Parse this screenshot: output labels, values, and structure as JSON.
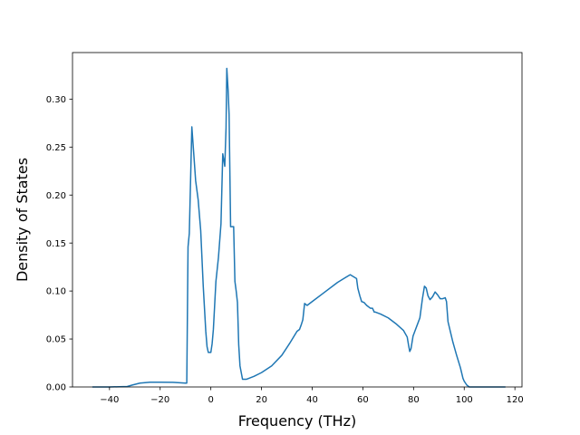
{
  "chart_data": {
    "type": "line",
    "title": "",
    "xlabel": "Frequency (THz)",
    "ylabel": "Density of States",
    "xlim": [
      -54.6,
      122.8
    ],
    "ylim": [
      0.0,
      0.3485
    ],
    "xticks": [
      -40,
      -20,
      0,
      20,
      40,
      60,
      80,
      100,
      120
    ],
    "xtick_labels": [
      "−40",
      "−20",
      "0",
      "20",
      "40",
      "60",
      "80",
      "100",
      "120"
    ],
    "yticks": [
      0.0,
      0.05,
      0.1,
      0.15,
      0.2,
      0.25,
      0.3
    ],
    "ytick_labels": [
      "0.00",
      "0.05",
      "0.10",
      "0.15",
      "0.20",
      "0.25",
      "0.30"
    ],
    "grid": false,
    "color": "#1f77b4",
    "series": [
      {
        "x": [
          -46.5,
          -40,
          -33,
          -31,
          -28,
          -24,
          -20,
          -15,
          -10,
          -9.5,
          -9.0,
          -8.5,
          -7.5,
          -6.8,
          -6.0,
          -5.0,
          -4.0,
          -3.0,
          -2.0,
          -1.5,
          -1.0,
          -0.5,
          0.0,
          0.5,
          1.0,
          1.5,
          2.0,
          3.0,
          4.0,
          4.7,
          5.2,
          5.5,
          6.0,
          6.3,
          6.8,
          7.2,
          7.8,
          8.3,
          9.0,
          9.5,
          10.0,
          10.5,
          11.0,
          11.5,
          12.5,
          14,
          17,
          20,
          24,
          28,
          31,
          34,
          35,
          35.7,
          36.3,
          37.0,
          38.0,
          40,
          44,
          50,
          55,
          57.5,
          58.0,
          58.8,
          59.5,
          60.5,
          61.5,
          63.0,
          63.8,
          64.5,
          65.0,
          67,
          70,
          73,
          76,
          77.5,
          78.0,
          78.5,
          79.0,
          79.8,
          80.5,
          81.5,
          82.5,
          83.5,
          84.3,
          85.0,
          85.7,
          86.5,
          87.5,
          88.5,
          89.5,
          90.5,
          91.5,
          92.5,
          93.0,
          93.6,
          94.5,
          95.5,
          97.0,
          98.5,
          99.5,
          100.0,
          100.5,
          101.0,
          102.0,
          103.0,
          105,
          110,
          116
        ],
        "y": [
          0.0,
          0.0,
          0.0005,
          0.002,
          0.004,
          0.005,
          0.005,
          0.0048,
          0.004,
          0.004,
          0.146,
          0.16,
          0.271,
          0.245,
          0.215,
          0.195,
          0.163,
          0.105,
          0.058,
          0.042,
          0.036,
          0.036,
          0.036,
          0.045,
          0.06,
          0.085,
          0.11,
          0.135,
          0.17,
          0.243,
          0.235,
          0.23,
          0.27,
          0.332,
          0.31,
          0.284,
          0.167,
          0.167,
          0.167,
          0.11,
          0.1,
          0.088,
          0.044,
          0.022,
          0.008,
          0.008,
          0.011,
          0.015,
          0.022,
          0.033,
          0.045,
          0.058,
          0.06,
          0.065,
          0.07,
          0.087,
          0.085,
          0.089,
          0.097,
          0.109,
          0.117,
          0.113,
          0.103,
          0.095,
          0.089,
          0.088,
          0.085,
          0.082,
          0.082,
          0.078,
          0.078,
          0.076,
          0.072,
          0.066,
          0.059,
          0.052,
          0.044,
          0.037,
          0.04,
          0.053,
          0.058,
          0.065,
          0.072,
          0.092,
          0.105,
          0.103,
          0.095,
          0.091,
          0.094,
          0.099,
          0.096,
          0.092,
          0.092,
          0.093,
          0.089,
          0.068,
          0.058,
          0.047,
          0.033,
          0.02,
          0.009,
          0.006,
          0.004,
          0.002,
          0.0,
          0.0,
          0.0,
          0.0,
          0.0
        ]
      }
    ]
  }
}
